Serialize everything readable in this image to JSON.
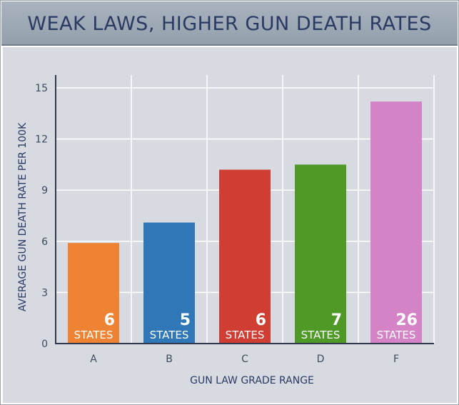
{
  "chart_data": {
    "type": "bar",
    "title": "WEAK LAWS, HIGHER GUN DEATH RATES",
    "xlabel": "GUN LAW GRADE RANGE",
    "ylabel": "AVERAGE GUN DEATH RATE PER 100K",
    "categories": [
      "A",
      "B",
      "C",
      "D",
      "F"
    ],
    "values": [
      5.9,
      7.1,
      10.2,
      10.5,
      14.2
    ],
    "ylim": [
      0,
      15
    ],
    "yticks": [
      0,
      3,
      6,
      9,
      12,
      15
    ],
    "grid": true,
    "bar_labels": [
      {
        "count": "6",
        "unit": "STATES"
      },
      {
        "count": "5",
        "unit": "STATES"
      },
      {
        "count": "6",
        "unit": "STATES"
      },
      {
        "count": "7",
        "unit": "STATES"
      },
      {
        "count": "26",
        "unit": "STATES"
      }
    ],
    "colors": [
      "#ee8433",
      "#2f77b6",
      "#cf3d33",
      "#4f9a27",
      "#d484c6"
    ]
  }
}
